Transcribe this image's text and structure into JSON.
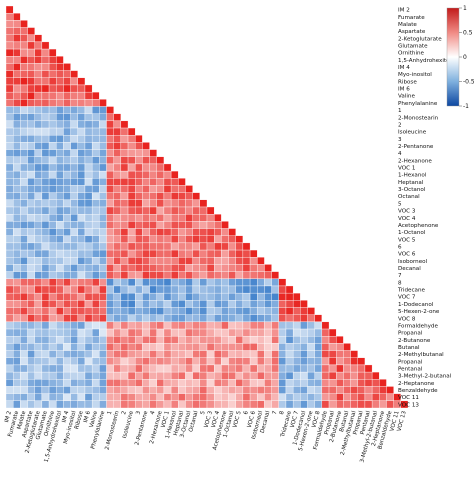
{
  "chart_data": {
    "type": "heatmap",
    "title": "",
    "xlabel": "",
    "ylabel": "",
    "layout": "lower-triangle",
    "variables": [
      "IM 2",
      "Fumarate",
      "Malate",
      "Aspartate",
      "2-Ketoglutarate",
      "Glutamate",
      "Ornithine",
      "1,5-Anhydrohexitol",
      "IM 4",
      "Myo-inositol",
      "Ribose",
      "IM 6",
      "Valine",
      "Phenylalanine",
      "1",
      "2-Monostearin",
      "2",
      "Isoleucine",
      "3",
      "2-Pentanone",
      "4",
      "2-Hexanone",
      "VOC 1",
      "1-Hexanol",
      "Heptanal",
      "3-Octanol",
      "Octanal",
      "5",
      "VOC 3",
      "VOC 4",
      "Acetophenone",
      "1-Octanol",
      "VOC 5",
      "6",
      "VOC 6",
      "Isoborneol",
      "Decanal",
      "7",
      "8",
      "Tridecane",
      "VOC 7",
      "1-Dodecanol",
      "5-Hexen-2-one",
      "VOC 8",
      "Formaldehyde",
      "Propanal",
      "2-Butanone",
      "Butanal",
      "2-Methylbutanal",
      "Propanal",
      "Pentanal",
      "3-Methyl-2-butanal",
      "2-Heptanone",
      "Benzaldehyde",
      "VOC 11",
      "VOC 13"
    ],
    "group_sizes": [
      14,
      24,
      6,
      12
    ],
    "group_correlation": [
      [
        0.75,
        -0.45,
        0.65,
        -0.4
      ],
      [
        -0.45,
        0.65,
        -0.55,
        0.45
      ],
      [
        0.65,
        -0.55,
        0.8,
        -0.45
      ],
      [
        -0.4,
        0.45,
        -0.45,
        0.7
      ]
    ],
    "colorbar": {
      "ticks": [
        1,
        0.5,
        0,
        -0.5,
        -1
      ],
      "tick_labels": [
        "1",
        "0.5",
        "0",
        "-0.5",
        "-1"
      ],
      "range": [
        -1,
        1
      ],
      "colors": {
        "high": "#e8231f",
        "mid": "#ffffff",
        "low": "#1565c0"
      }
    },
    "grid": true,
    "legend_position": "top-right"
  }
}
